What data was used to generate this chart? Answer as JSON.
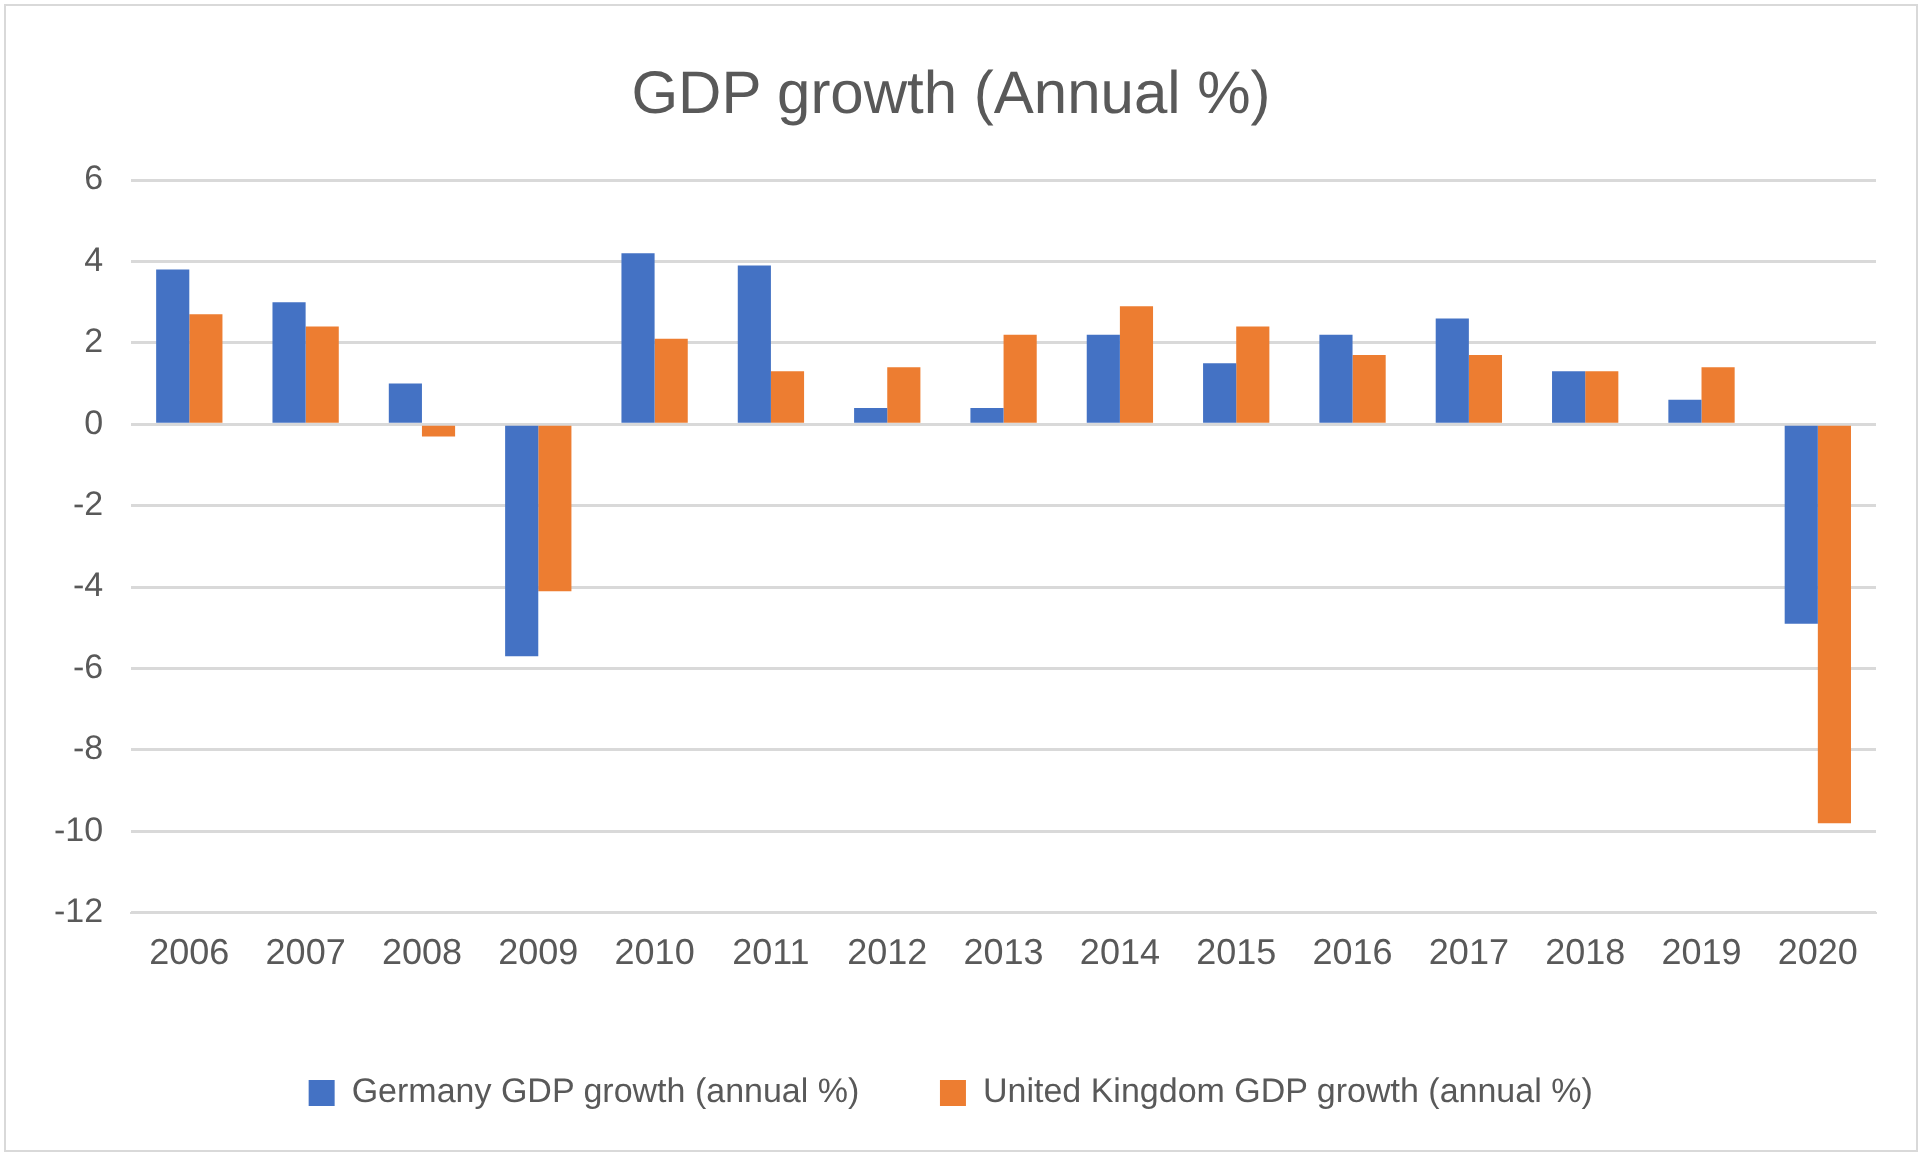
{
  "chart_data": {
    "type": "bar",
    "title": "GDP growth (Annual %)",
    "categories": [
      "2006",
      "2007",
      "2008",
      "2009",
      "2010",
      "2011",
      "2012",
      "2013",
      "2014",
      "2015",
      "2016",
      "2017",
      "2018",
      "2019",
      "2020"
    ],
    "series": [
      {
        "name": "Germany GDP growth (annual %)",
        "color": "#4472c4",
        "values": [
          3.8,
          3.0,
          1.0,
          -5.7,
          4.2,
          3.9,
          0.4,
          0.4,
          2.2,
          1.5,
          2.2,
          2.6,
          1.3,
          0.6,
          -4.9
        ]
      },
      {
        "name": "United Kingdom GDP growth (annual %)",
        "color": "#ed7d31",
        "values": [
          2.7,
          2.4,
          -0.3,
          -4.1,
          2.1,
          1.3,
          1.4,
          2.2,
          2.9,
          2.4,
          1.7,
          1.7,
          1.3,
          1.4,
          -9.8
        ]
      }
    ],
    "ylim": [
      -12,
      6
    ],
    "yticks": [
      -12,
      -10,
      -8,
      -6,
      -4,
      -2,
      0,
      2,
      4,
      6
    ],
    "grid": "y",
    "legend": "bottom"
  }
}
